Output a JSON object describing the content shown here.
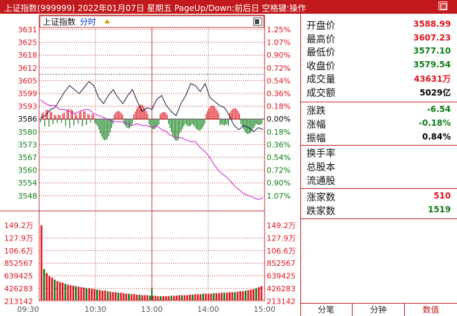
{
  "window": {
    "title": "上证指数(999999)  2022年01月07日  星期五  PageUp/Down:前后日  空格键:操作"
  },
  "chart": {
    "tag_label": "上证指数",
    "tab_label": "分时",
    "price_ticks": [
      "3631",
      "3625",
      "3618",
      "3612",
      "3605",
      "3599",
      "3593",
      "3586",
      "3580",
      "3573",
      "3567",
      "3560",
      "3554",
      "3548"
    ],
    "pct_ticks": [
      "1.25%",
      "1.07%",
      "0.90%",
      "0.72%",
      "0.54%",
      "0.36%",
      "0.18%",
      "0.00%",
      "0.18%",
      "0.36%",
      "0.54%",
      "0.72%",
      "0.90%",
      "1.07%"
    ],
    "vol_ticks": [
      "149.2万",
      "127.9万",
      "106.6万",
      "852567",
      "639425",
      "426283",
      "213142"
    ],
    "time_ticks": [
      "09:30",
      "10:30",
      "13:00",
      "14:00",
      "15:00"
    ],
    "colors": {
      "up": "#e0141c",
      "down": "#0a7d14",
      "price_line": "#14143c",
      "avg_line": "#d014d0",
      "grid": "#c23232"
    }
  },
  "chart_data": {
    "type": "line",
    "title": "上证指数",
    "xlabel": "",
    "ylabel": "",
    "x_range": [
      "09:30",
      "15:00"
    ],
    "ylim": [
      3544.5,
      3631
    ],
    "prev_close": 3586,
    "series": [
      {
        "values": [
          3587,
          3588,
          3591,
          3592,
          3596,
          3600,
          3603,
          3601,
          3599,
          3602,
          3605,
          3603,
          3597,
          3594,
          3598,
          3601,
          3597,
          3594,
          3598,
          3601,
          3595,
          3590,
          3592,
          3591,
          3596,
          3598,
          3593,
          3590,
          3588,
          3594,
          3598,
          3604,
          3603,
          3600,
          3604,
          3597,
          3595,
          3593,
          3592,
          3588,
          3583,
          3581,
          3583,
          3582,
          3580,
          3582,
          3581
        ]
      },
      {
        "values": [
          3596,
          3594,
          3593,
          3593,
          3591,
          3591,
          3590,
          3589,
          3590,
          3591,
          3591,
          3589,
          3588,
          3587,
          3586,
          3585,
          3585,
          3585,
          3584,
          3583,
          3584,
          3583,
          3583,
          3582,
          3583,
          3581,
          3580,
          3578,
          3577,
          3577,
          3576,
          3575,
          3575,
          3572,
          3570,
          3567,
          3563,
          3560,
          3558,
          3556,
          3553,
          3551,
          3549,
          3548,
          3547,
          3546,
          3547
        ]
      }
    ],
    "volume": {
      "unit": "万",
      "max_label": "149.2万",
      "values": [
        149,
        62,
        54,
        48,
        45,
        41,
        38,
        36,
        35,
        33,
        31,
        30,
        29,
        28,
        27,
        26,
        25,
        24,
        24,
        23,
        22,
        21,
        20,
        19,
        19,
        18,
        17,
        16,
        16,
        15,
        15,
        14,
        13,
        13,
        12,
        12,
        11,
        11,
        10,
        10,
        10,
        9,
        9,
        9,
        8,
        8,
        8,
        8,
        8,
        9,
        9,
        9,
        10,
        10,
        10,
        10,
        11,
        11,
        12,
        12,
        12,
        13,
        13,
        13,
        13,
        14,
        14,
        14,
        15,
        15,
        15,
        16,
        16,
        16,
        17,
        18,
        18,
        19,
        20,
        21,
        22,
        24,
        26,
        28
      ]
    }
  },
  "panel": {
    "quote": [
      {
        "label": "开盘价",
        "value": "3588.99",
        "color": "red"
      },
      {
        "label": "最高价",
        "value": "3607.23",
        "color": "red"
      },
      {
        "label": "最低价",
        "value": "3577.10",
        "color": "green"
      },
      {
        "label": "收盘价",
        "value": "3579.54",
        "color": "green"
      },
      {
        "label": "成交量",
        "value": "43631万",
        "color": "red"
      },
      {
        "label": "成交额",
        "value": "5029亿",
        "color": "blk"
      }
    ],
    "change": [
      {
        "label": "涨跌",
        "value": "-6.54",
        "color": "green"
      },
      {
        "label": "涨幅",
        "value": "-0.18%",
        "color": "green"
      },
      {
        "label": "振幅",
        "value": "0.84%",
        "color": "blk"
      }
    ],
    "extra": [
      {
        "label": "换手率",
        "value": ""
      },
      {
        "label": "总股本",
        "value": ""
      },
      {
        "label": "流通股",
        "value": ""
      }
    ],
    "breadth": [
      {
        "label": "涨家数",
        "value": "510",
        "color": "red"
      },
      {
        "label": "跌家数",
        "value": "1519",
        "color": "green"
      }
    ]
  },
  "tabs": [
    "分笔",
    "分钟",
    "数值"
  ]
}
